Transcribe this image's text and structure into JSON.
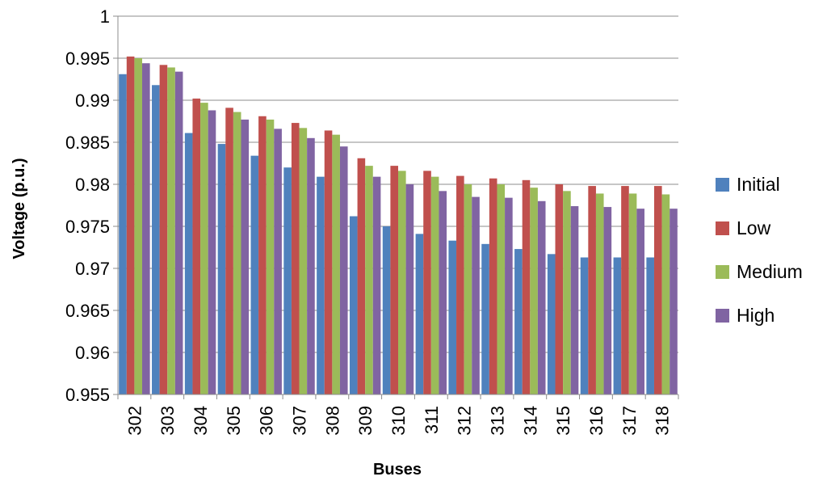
{
  "chart_data": {
    "type": "bar",
    "title": "",
    "xlabel": "Buses",
    "ylabel": "Voltage (p.u.)",
    "ylim": [
      0.955,
      1
    ],
    "ytick_step": 0.005,
    "y_ticks": [
      "0.955",
      "0.96",
      "0.965",
      "0.97",
      "0.975",
      "0.98",
      "0.985",
      "0.99",
      "0.995",
      "1"
    ],
    "grid": "horizontal",
    "legend_position": "right",
    "categories": [
      "302",
      "303",
      "304",
      "305",
      "306",
      "307",
      "308",
      "309",
      "310",
      "311",
      "312",
      "313",
      "314",
      "315",
      "316",
      "317",
      "318"
    ],
    "series": [
      {
        "name": "Initial",
        "color": "#4F81BD",
        "values": [
          0.9931,
          0.9918,
          0.9861,
          0.9848,
          0.9834,
          0.982,
          0.9809,
          0.9762,
          0.975,
          0.9741,
          0.9733,
          0.9729,
          0.9723,
          0.9717,
          0.9713,
          0.9713,
          0.9713
        ]
      },
      {
        "name": "Low",
        "color": "#C0504D",
        "values": [
          0.9952,
          0.9942,
          0.9902,
          0.9891,
          0.9881,
          0.9873,
          0.9864,
          0.9831,
          0.9822,
          0.9816,
          0.981,
          0.9807,
          0.9805,
          0.98,
          0.9798,
          0.9798,
          0.9798
        ]
      },
      {
        "name": "Medium",
        "color": "#9BBB59",
        "values": [
          0.995,
          0.9939,
          0.9897,
          0.9886,
          0.9877,
          0.9867,
          0.9859,
          0.9822,
          0.9816,
          0.9809,
          0.98,
          0.98,
          0.9796,
          0.9792,
          0.9789,
          0.9789,
          0.9788
        ]
      },
      {
        "name": "High",
        "color": "#8064A2",
        "values": [
          0.9944,
          0.9934,
          0.9888,
          0.9877,
          0.9866,
          0.9855,
          0.9845,
          0.9809,
          0.98,
          0.9792,
          0.9785,
          0.9784,
          0.978,
          0.9774,
          0.9773,
          0.9771,
          0.9771
        ]
      }
    ]
  }
}
